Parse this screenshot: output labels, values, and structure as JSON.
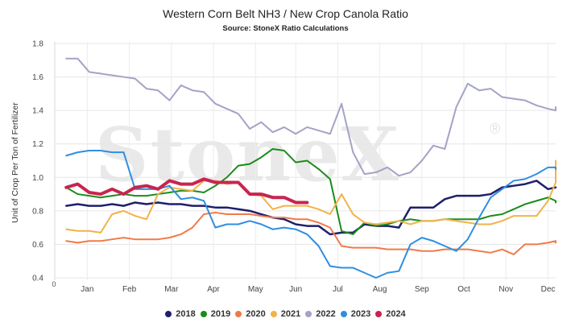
{
  "chart_data": {
    "type": "line",
    "title": "Western Corn Belt NH3 / New Crop Canola Ratio",
    "subtitle": "Source: StoneX Ratio Calculations",
    "ylabel": "Unit of Crop Per Ton of Fertilizer",
    "xlabel": "",
    "ylim": [
      0.4,
      1.8
    ],
    "yticks": [
      "0.4",
      "0.6",
      "0.8",
      "1.0",
      "1.2",
      "1.4",
      "1.6",
      "1.8"
    ],
    "xlim": [
      0,
      13.1
    ],
    "x_origin_label": "0",
    "month_ticks": [
      {
        "label": "Jan",
        "x": 0.85
      },
      {
        "label": "Feb",
        "x": 1.95
      },
      {
        "label": "Mar",
        "x": 3.05
      },
      {
        "label": "Apr",
        "x": 4.15
      },
      {
        "label": "May",
        "x": 5.25
      },
      {
        "label": "Jun",
        "x": 6.3
      },
      {
        "label": "Jul",
        "x": 7.4
      },
      {
        "label": "Aug",
        "x": 8.5
      },
      {
        "label": "Sep",
        "x": 9.6
      },
      {
        "label": "Oct",
        "x": 10.7
      },
      {
        "label": "Nov",
        "x": 11.8
      },
      {
        "label": "Dec",
        "x": 12.9
      }
    ],
    "grid": true,
    "legend_position": "bottom",
    "watermark": "StoneX",
    "series": [
      {
        "name": "2018",
        "color": "#1f1f6b",
        "width": 2.5,
        "x": [
          0.3,
          0.6,
          0.9,
          1.2,
          1.5,
          1.8,
          2.1,
          2.4,
          2.7,
          3.0,
          3.3,
          3.6,
          3.9,
          4.2,
          4.5,
          4.8,
          5.1,
          5.4,
          5.7,
          6.0,
          6.3,
          6.6,
          6.9,
          7.2,
          7.5,
          7.8,
          8.1,
          8.4,
          8.7,
          9.0,
          9.3,
          9.6,
          9.9,
          10.2,
          10.5,
          10.8,
          11.1,
          11.4,
          11.7,
          12.0,
          12.3,
          12.6,
          12.9,
          13.2,
          13.5
        ],
        "values": [
          0.83,
          0.84,
          0.83,
          0.83,
          0.84,
          0.83,
          0.85,
          0.84,
          0.85,
          0.84,
          0.84,
          0.83,
          0.83,
          0.82,
          0.82,
          0.81,
          0.8,
          0.78,
          0.76,
          0.75,
          0.72,
          0.71,
          0.71,
          0.66,
          0.67,
          0.67,
          0.72,
          0.71,
          0.71,
          0.7,
          0.82,
          0.82,
          0.82,
          0.87,
          0.89,
          0.89,
          0.89,
          0.9,
          0.94,
          0.95,
          0.96,
          0.98,
          0.93,
          0.94,
          0.94
        ]
      },
      {
        "name": "2019",
        "color": "#1a8c1a",
        "width": 2,
        "x": [
          0.3,
          0.6,
          0.9,
          1.2,
          1.5,
          1.8,
          2.1,
          2.4,
          2.7,
          3.0,
          3.3,
          3.6,
          3.9,
          4.2,
          4.5,
          4.8,
          5.1,
          5.4,
          5.7,
          6.0,
          6.3,
          6.6,
          6.9,
          7.2,
          7.5,
          7.8,
          8.1,
          8.4,
          8.7,
          9.0,
          9.3,
          9.6,
          9.9,
          10.2,
          10.5,
          10.8,
          11.1,
          11.4,
          11.7,
          12.0,
          12.3,
          12.6,
          12.9,
          13.2,
          13.5
        ],
        "values": [
          0.94,
          0.9,
          0.89,
          0.88,
          0.89,
          0.9,
          0.89,
          0.89,
          0.9,
          0.91,
          0.92,
          0.92,
          0.91,
          0.95,
          1.0,
          1.07,
          1.08,
          1.12,
          1.17,
          1.16,
          1.09,
          1.1,
          1.05,
          0.99,
          0.68,
          0.66,
          0.73,
          0.71,
          0.72,
          0.74,
          0.75,
          0.74,
          0.74,
          0.75,
          0.75,
          0.75,
          0.75,
          0.77,
          0.78,
          0.81,
          0.84,
          0.86,
          0.88,
          0.86,
          0.85
        ]
      },
      {
        "name": "2020",
        "color": "#f07a4a",
        "width": 2,
        "x": [
          0.3,
          0.6,
          0.9,
          1.2,
          1.5,
          1.8,
          2.1,
          2.4,
          2.7,
          3.0,
          3.3,
          3.6,
          3.9,
          4.2,
          4.5,
          4.8,
          5.1,
          5.4,
          5.7,
          6.0,
          6.3,
          6.6,
          6.9,
          7.2,
          7.5,
          7.8,
          8.1,
          8.4,
          8.7,
          9.0,
          9.3,
          9.6,
          9.9,
          10.2,
          10.5,
          10.8,
          11.1,
          11.4,
          11.7,
          12.0,
          12.3,
          12.6,
          12.9,
          13.2,
          13.5
        ],
        "values": [
          0.62,
          0.61,
          0.62,
          0.62,
          0.63,
          0.64,
          0.63,
          0.63,
          0.63,
          0.64,
          0.66,
          0.7,
          0.78,
          0.79,
          0.78,
          0.78,
          0.78,
          0.77,
          0.76,
          0.76,
          0.75,
          0.75,
          0.73,
          0.7,
          0.59,
          0.58,
          0.58,
          0.58,
          0.57,
          0.57,
          0.57,
          0.56,
          0.56,
          0.57,
          0.57,
          0.57,
          0.56,
          0.55,
          0.57,
          0.54,
          0.6,
          0.6,
          0.61,
          0.62,
          0.61
        ]
      },
      {
        "name": "2021",
        "color": "#f2b24a",
        "width": 2,
        "x": [
          0.3,
          0.6,
          0.9,
          1.2,
          1.5,
          1.8,
          2.1,
          2.4,
          2.7,
          3.0,
          3.3,
          3.6,
          3.9,
          4.2,
          4.5,
          4.8,
          5.1,
          5.4,
          5.7,
          6.0,
          6.3,
          6.6,
          6.9,
          7.2,
          7.5,
          7.8,
          8.1,
          8.4,
          8.7,
          9.0,
          9.3,
          9.6,
          9.9,
          10.2,
          10.5,
          10.8,
          11.1,
          11.4,
          11.7,
          12.0,
          12.3,
          12.6,
          12.9,
          13.2,
          13.5
        ],
        "values": [
          0.69,
          0.68,
          0.68,
          0.67,
          0.78,
          0.8,
          0.77,
          0.75,
          0.9,
          0.94,
          0.93,
          0.92,
          0.98,
          0.98,
          0.96,
          0.97,
          0.9,
          0.89,
          0.81,
          0.83,
          0.83,
          0.83,
          0.81,
          0.78,
          0.9,
          0.78,
          0.73,
          0.72,
          0.73,
          0.74,
          0.72,
          0.74,
          0.74,
          0.75,
          0.74,
          0.73,
          0.72,
          0.72,
          0.74,
          0.77,
          0.77,
          0.77,
          0.86,
          0.97,
          1.1
        ]
      },
      {
        "name": "2022",
        "color": "#a3a3c7",
        "width": 2,
        "x": [
          0.3,
          0.6,
          0.9,
          1.2,
          1.5,
          1.8,
          2.1,
          2.4,
          2.7,
          3.0,
          3.3,
          3.6,
          3.9,
          4.2,
          4.5,
          4.8,
          5.1,
          5.4,
          5.7,
          6.0,
          6.3,
          6.6,
          6.9,
          7.2,
          7.5,
          7.8,
          8.1,
          8.4,
          8.7,
          9.0,
          9.3,
          9.6,
          9.9,
          10.2,
          10.5,
          10.8,
          11.1,
          11.4,
          11.7,
          12.0,
          12.3,
          12.6,
          12.9,
          13.2,
          13.5
        ],
        "values": [
          1.71,
          1.71,
          1.63,
          1.62,
          1.61,
          1.6,
          1.59,
          1.53,
          1.52,
          1.46,
          1.55,
          1.52,
          1.51,
          1.44,
          1.41,
          1.38,
          1.29,
          1.33,
          1.27,
          1.3,
          1.26,
          1.3,
          1.28,
          1.26,
          1.44,
          1.15,
          1.02,
          1.03,
          1.06,
          1.01,
          1.03,
          1.1,
          1.19,
          1.17,
          1.42,
          1.56,
          1.52,
          1.53,
          1.48,
          1.47,
          1.46,
          1.43,
          1.41,
          1.4,
          1.42
        ]
      },
      {
        "name": "2023",
        "color": "#2f8fe0",
        "width": 2,
        "x": [
          0.3,
          0.6,
          0.9,
          1.2,
          1.5,
          1.8,
          2.1,
          2.4,
          2.7,
          3.0,
          3.3,
          3.6,
          3.9,
          4.2,
          4.5,
          4.8,
          5.1,
          5.4,
          5.7,
          6.0,
          6.3,
          6.6,
          6.9,
          7.2,
          7.5,
          7.8,
          8.1,
          8.4,
          8.7,
          9.0,
          9.3,
          9.6,
          9.9,
          10.2,
          10.5,
          10.8,
          11.1,
          11.4,
          11.7,
          12.0,
          12.3,
          12.6,
          12.9,
          13.2,
          13.5
        ],
        "values": [
          1.13,
          1.15,
          1.16,
          1.16,
          1.15,
          1.15,
          0.93,
          0.93,
          0.93,
          0.95,
          0.87,
          0.88,
          0.86,
          0.7,
          0.72,
          0.72,
          0.74,
          0.72,
          0.69,
          0.7,
          0.69,
          0.66,
          0.59,
          0.47,
          0.46,
          0.46,
          0.43,
          0.4,
          0.43,
          0.44,
          0.6,
          0.64,
          0.62,
          0.59,
          0.56,
          0.63,
          0.76,
          0.88,
          0.93,
          0.98,
          0.99,
          1.02,
          1.06,
          1.06,
          1.05
        ]
      },
      {
        "name": "2024",
        "color": "#c8244f",
        "width": 4,
        "x": [
          0.3,
          0.6,
          0.9,
          1.2,
          1.5,
          1.8,
          2.1,
          2.4,
          2.7,
          3.0,
          3.3,
          3.6,
          3.9,
          4.2,
          4.5,
          4.8,
          5.1,
          5.4,
          5.7,
          6.0,
          6.3,
          6.6
        ],
        "values": [
          0.94,
          0.96,
          0.91,
          0.9,
          0.93,
          0.9,
          0.94,
          0.95,
          0.93,
          0.98,
          0.96,
          0.96,
          0.99,
          0.97,
          0.97,
          0.97,
          0.9,
          0.9,
          0.88,
          0.88,
          0.85,
          0.85
        ]
      }
    ]
  }
}
